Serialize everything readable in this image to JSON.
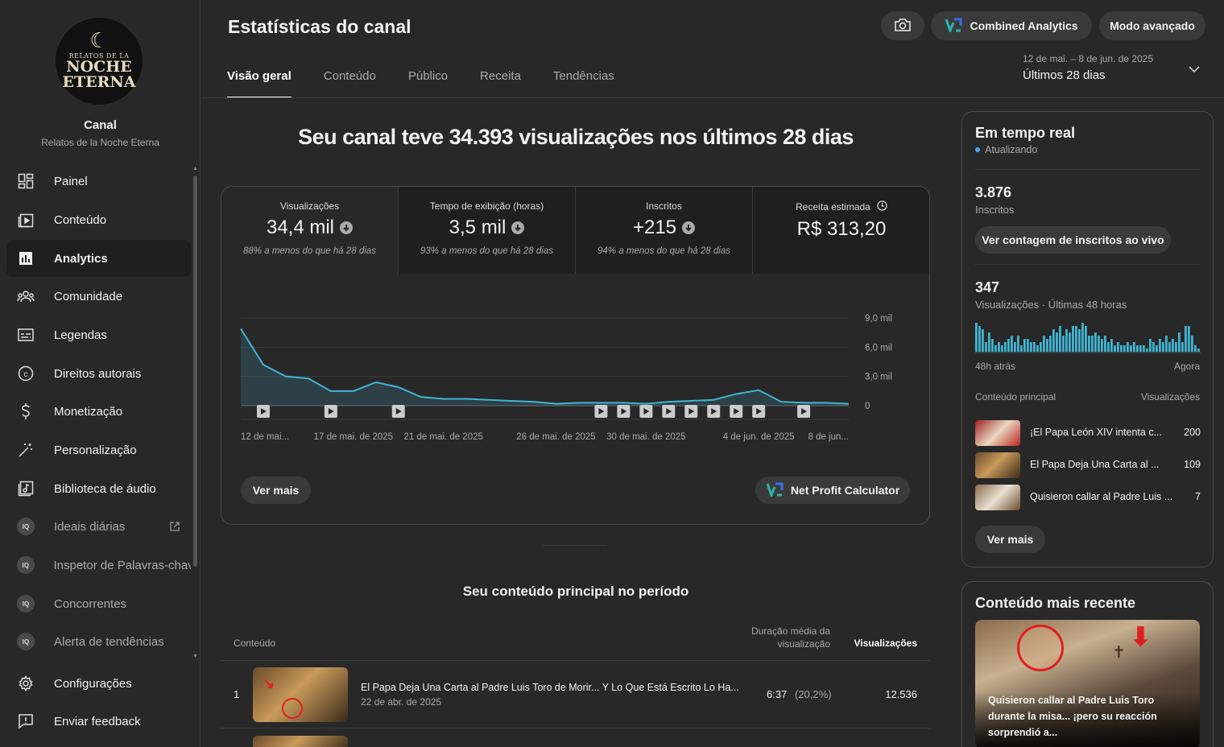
{
  "header": {
    "title": "Estatísticas do canal",
    "combined_label": "Combined Analytics",
    "advanced_label": "Modo avançado",
    "date_range": "12 de mai. – 8 de jun. de 2025",
    "period": "Últimos 28 dias"
  },
  "tabs": [
    {
      "label": "Visão geral",
      "active": true
    },
    {
      "label": "Conteúdo",
      "active": false
    },
    {
      "label": "Público",
      "active": false
    },
    {
      "label": "Receita",
      "active": false
    },
    {
      "label": "Tendências",
      "active": false
    }
  ],
  "channel": {
    "name": "Canal",
    "handle": "Relatos de la Noche Eterna",
    "logo_line1": "RELATOS DE LA",
    "logo_line2": "NOCHE",
    "logo_line3": "ETERNA"
  },
  "sidebar": {
    "items": [
      {
        "label": "Painel",
        "icon": "dashboard-icon"
      },
      {
        "label": "Conteúdo",
        "icon": "content-icon"
      },
      {
        "label": "Analytics",
        "icon": "analytics-icon",
        "active": true
      },
      {
        "label": "Comunidade",
        "icon": "community-icon"
      },
      {
        "label": "Legendas",
        "icon": "subtitles-icon"
      },
      {
        "label": "Direitos autorais",
        "icon": "copyright-icon"
      },
      {
        "label": "Monetização",
        "icon": "dollar-icon"
      },
      {
        "label": "Personalização",
        "icon": "magic-wand-icon"
      },
      {
        "label": "Biblioteca de áudio",
        "icon": "audio-library-icon"
      },
      {
        "label": "Ideais diárias",
        "icon": "extension-icon",
        "external": true
      },
      {
        "label": "Inspetor de Palavras-chav",
        "icon": "extension-icon"
      },
      {
        "label": "Concorrentes",
        "icon": "extension-icon"
      },
      {
        "label": "Alerta de tendências",
        "icon": "extension-icon"
      },
      {
        "label": "Configurações",
        "icon": "gear-icon"
      },
      {
        "label": "Enviar feedback",
        "icon": "feedback-icon"
      }
    ],
    "ext_badge": "IQ"
  },
  "headline": "Seu canal teve 34.393 visualizações nos últimos 28 dias",
  "metrics": [
    {
      "title": "Visualizações",
      "value": "34,4 mil",
      "down": true,
      "compare": "88% a menos do que há 28 dias"
    },
    {
      "title": "Tempo de exibição (horas)",
      "value": "3,5 mil",
      "down": true,
      "compare": "93% a menos do que há 28 dias"
    },
    {
      "title": "Inscritos",
      "value": "+215",
      "down": true,
      "compare": "94% a menos do que há 28 dias"
    },
    {
      "title": "Receita estimada",
      "value": "R$ 313,20",
      "down": false,
      "compare": ""
    }
  ],
  "chart_data": {
    "type": "area",
    "series": [
      {
        "values": [
          7900,
          4200,
          3000,
          2800,
          1500,
          1500,
          2400,
          1900,
          900,
          700,
          700,
          600,
          500,
          400,
          200,
          300,
          300,
          300,
          200,
          400,
          500,
          600,
          1200,
          1600,
          400,
          300,
          300,
          200
        ]
      }
    ],
    "y_ticks": [
      "9,0 mil",
      "6,0 mil",
      "3,0 mil",
      "0"
    ],
    "y_tick_values": [
      9000,
      6000,
      3000,
      0
    ],
    "ylim": [
      0,
      9000
    ],
    "x_labels": [
      "12 de mai...",
      "17 de mai. de 2025",
      "21 de mai. de 2025",
      "26 de mai. de 2025",
      "30 de mai. de 2025",
      "4 de jun. de 2025",
      "8 de jun..."
    ],
    "x_label_days": [
      0,
      5,
      9,
      14,
      18,
      23,
      27
    ],
    "video_markers_days": [
      1,
      4,
      7,
      16,
      17,
      18,
      19,
      20,
      21,
      22,
      23,
      25
    ],
    "color": "#41b4d2",
    "grid": true
  },
  "chart_buttons": {
    "more": "Ver mais",
    "profit": "Net Profit Calculator"
  },
  "top_content": {
    "title": "Seu conteúdo principal no período",
    "col_content": "Conteúdo",
    "col_duration": "Duração média da visualização",
    "col_views": "Visualizações",
    "rows": [
      {
        "rank": "1",
        "title": "El Papa Deja Una Carta al Padre Luis Toro de Morir... Y Lo Que Está Escrito Lo Ha...",
        "date": "22 de abr. de 2025",
        "duration": "6:37",
        "pct": "(20,2%)",
        "views": "12.536"
      }
    ]
  },
  "realtime": {
    "title": "Em tempo real",
    "status": "Atualizando",
    "subs_value": "3.876",
    "subs_label": "Inscritos",
    "live_button": "Ver contagem de inscritos ao vivo",
    "views_value": "347",
    "views_label": "Visualizações · Últimas 48 horas",
    "left_label": "48h atrás",
    "right_label": "Agora",
    "bars": [
      9,
      8,
      7,
      3,
      6,
      4,
      2,
      3,
      2,
      3,
      4,
      5,
      3,
      5,
      2,
      4,
      4,
      3,
      3,
      2,
      3,
      5,
      4,
      5,
      7,
      6,
      8,
      5,
      7,
      6,
      8,
      8,
      7,
      9,
      8,
      5,
      5,
      6,
      5,
      4,
      5,
      3,
      4,
      2,
      3,
      2,
      2,
      3,
      2,
      3,
      2,
      2,
      2,
      1,
      4,
      3,
      2,
      4,
      3,
      5,
      3,
      4,
      3,
      6,
      3,
      8,
      8,
      5,
      2,
      1
    ],
    "content_header": "Conteúdo principal",
    "views_header": "Visualizações",
    "items": [
      {
        "title": "¡El Papa León XIV intenta c...",
        "views": "200"
      },
      {
        "title": "El Papa Deja Una Carta al ...",
        "views": "109"
      },
      {
        "title": "Quisieron callar al Padre Luis ...",
        "views": "7"
      }
    ],
    "more": "Ver mais"
  },
  "recent": {
    "title": "Conteúdo mais recente",
    "caption": "Quisieron callar al Padre Luis Toro durante la misa... ¡pero su reacción sorprendió a..."
  }
}
